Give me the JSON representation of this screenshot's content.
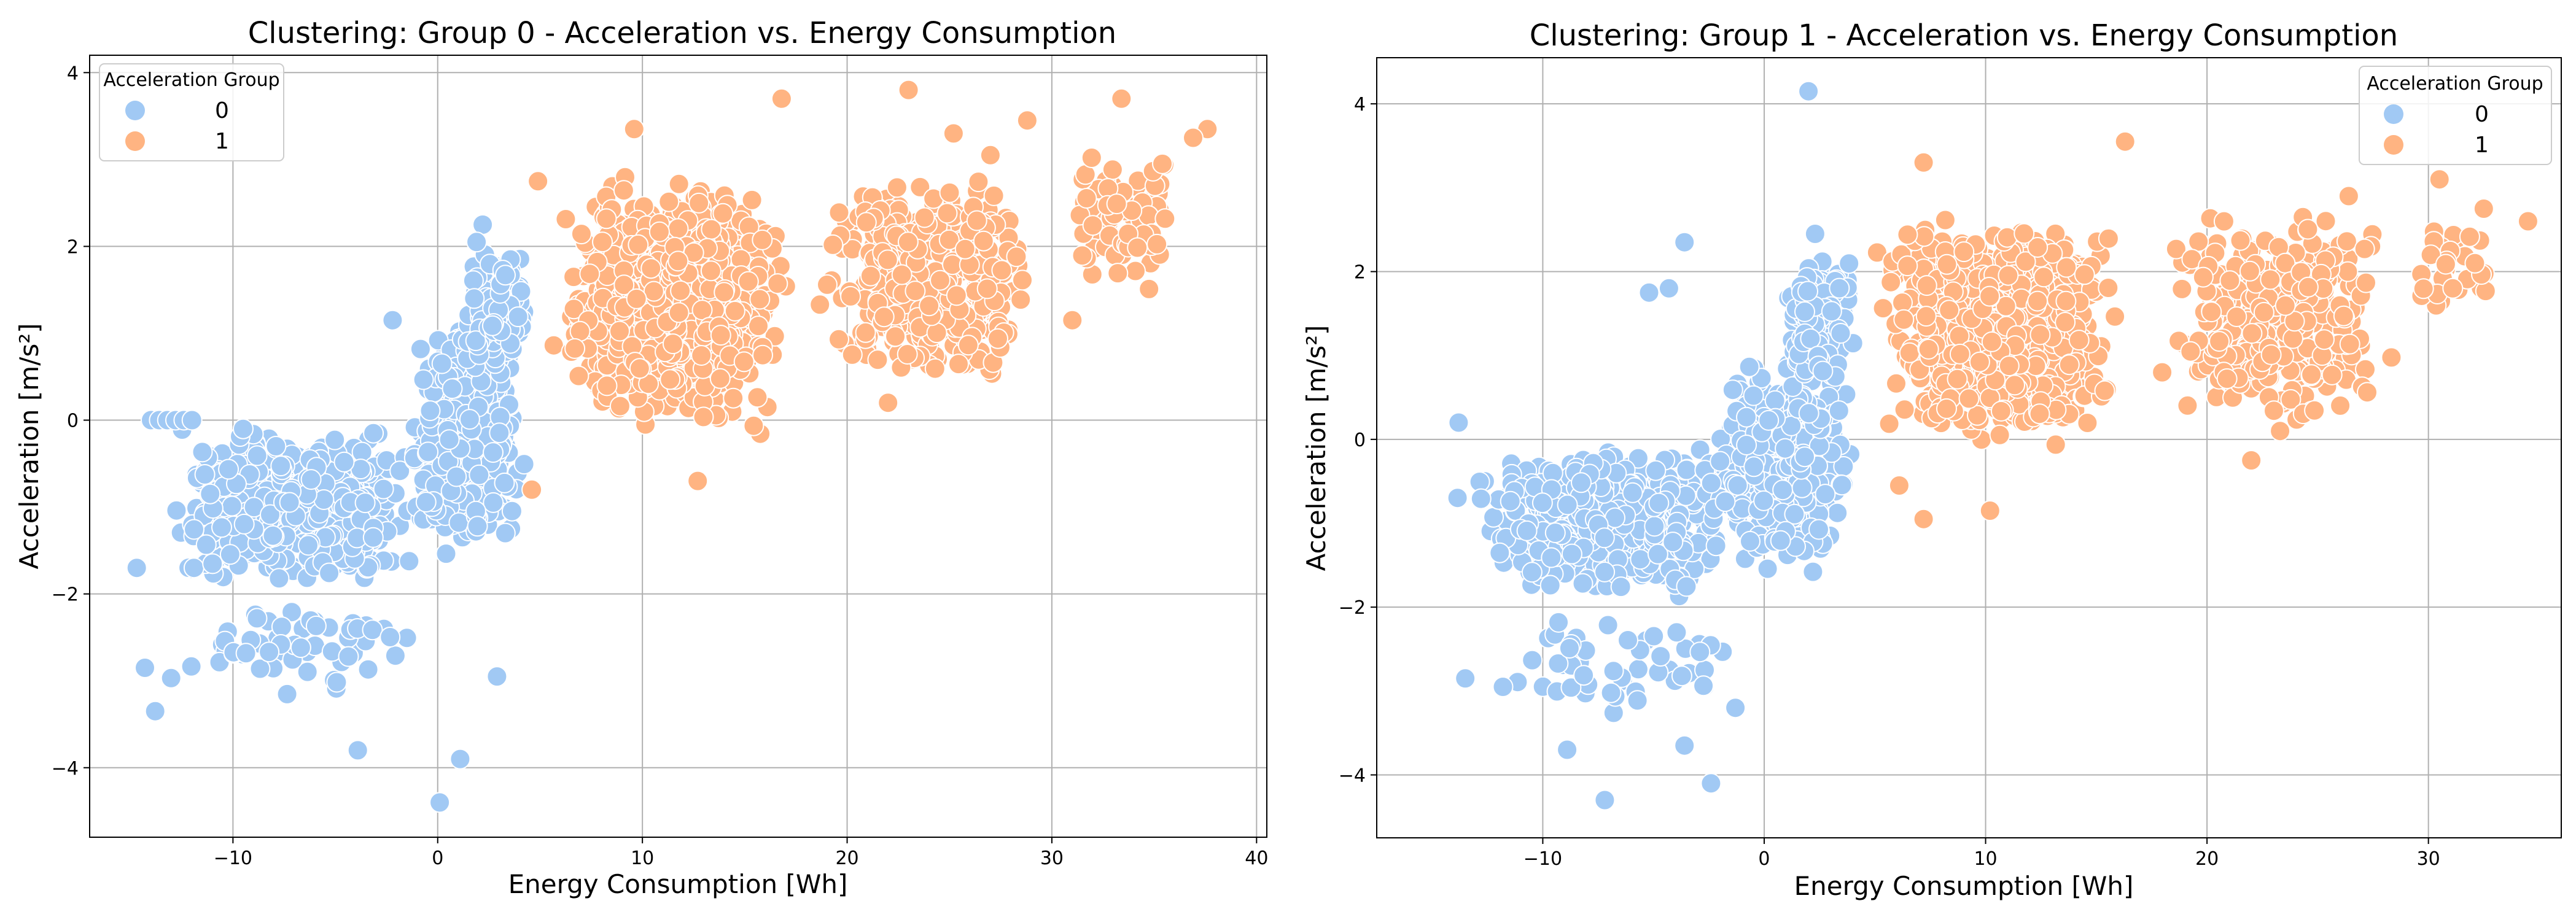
{
  "chart_data": [
    {
      "type": "scatter",
      "title": "Clustering: Group 0 - Acceleration vs. Energy Consumption",
      "xlabel": "Energy Consumption [Wh]",
      "ylabel": "Acceleration [m/s²]",
      "xlim": [
        -17,
        40.5
      ],
      "ylim": [
        -4.8,
        4.2
      ],
      "xticks": [
        -10,
        0,
        10,
        20,
        30,
        40
      ],
      "xtick_labels": [
        "−10",
        "0",
        "10",
        "20",
        "30",
        "40"
      ],
      "yticks": [
        -4,
        -2,
        0,
        2,
        4
      ],
      "ytick_labels": [
        "−4",
        "−2",
        "0",
        "2",
        "4"
      ],
      "grid": true,
      "legend": {
        "title": "Acceleration Group",
        "position": "top-left",
        "labels": [
          "0",
          "1"
        ]
      },
      "series": [
        {
          "name": "0",
          "color": "#a1c9f4",
          "clusters": [
            {
              "x_range": [
                -14.5,
                0
              ],
              "y_range": [
                -2.1,
                0.1
              ],
              "count": 520
            },
            {
              "x_range": [
                -2,
                4.8
              ],
              "y_range": [
                -1.9,
                1.5
              ],
              "count": 360
            },
            {
              "x_range": [
                1,
                4.8
              ],
              "y_range": [
                0.5,
                2.1
              ],
              "count": 140
            },
            {
              "x_range": [
                -14.5,
                1.5
              ],
              "y_range": [
                -3.3,
                -2.0
              ],
              "count": 55
            }
          ],
          "outliers": [
            [
              -14,
              0
            ],
            [
              -13.6,
              0
            ],
            [
              -13.2,
              0
            ],
            [
              -12.8,
              0
            ],
            [
              -12.4,
              0
            ],
            [
              -12,
              0
            ],
            [
              -13.8,
              -3.35
            ],
            [
              -14.3,
              -2.85
            ],
            [
              -2.2,
              1.15
            ],
            [
              2.2,
              2.25
            ],
            [
              1.9,
              2.05
            ],
            [
              -3.9,
              -3.8
            ],
            [
              0.1,
              -4.4
            ],
            [
              1.1,
              -3.9
            ],
            [
              2.9,
              -2.95
            ],
            [
              3.3,
              -1.3
            ],
            [
              -9.5,
              -0.1
            ],
            [
              -7.9,
              -0.3
            ],
            [
              -14.7,
              -1.7
            ]
          ]
        },
        {
          "name": "1",
          "color": "#ffb482",
          "clusters": [
            {
              "x_range": [
                4.8,
                18
              ],
              "y_range": [
                -0.3,
                3.0
              ],
              "count": 900
            },
            {
              "x_range": [
                18,
                30
              ],
              "y_range": [
                0.1,
                3.1
              ],
              "count": 380
            },
            {
              "x_range": [
                30,
                37
              ],
              "y_range": [
                1.3,
                3.3
              ],
              "count": 70
            }
          ],
          "outliers": [
            [
              23,
              3.8
            ],
            [
              33.4,
              3.7
            ],
            [
              16.8,
              3.7
            ],
            [
              37.6,
              3.35
            ],
            [
              12.7,
              -0.7
            ],
            [
              22,
              0.2
            ],
            [
              31,
              1.15
            ],
            [
              4.6,
              -0.8
            ],
            [
              4.9,
              2.75
            ],
            [
              9.6,
              3.35
            ],
            [
              25.2,
              3.3
            ],
            [
              28.8,
              3.45
            ],
            [
              35.4,
              2.95
            ],
            [
              36.9,
              3.25
            ],
            [
              27,
              3.05
            ]
          ]
        }
      ]
    },
    {
      "type": "scatter",
      "title": "Clustering: Group 1 - Acceleration vs. Energy Consumption",
      "xlabel": "Energy Consumption [Wh]",
      "ylabel": "Acceleration [m/s²]",
      "xlim": [
        -17.5,
        36
      ],
      "ylim": [
        -4.75,
        4.55
      ],
      "xticks": [
        -10,
        0,
        10,
        20,
        30
      ],
      "xtick_labels": [
        "−10",
        "0",
        "10",
        "20",
        "30"
      ],
      "yticks": [
        -4,
        -2,
        0,
        2,
        4
      ],
      "ytick_labels": [
        "−4",
        "−2",
        "0",
        "2",
        "4"
      ],
      "grid": true,
      "legend": {
        "title": "Acceleration Group",
        "position": "top-right",
        "labels": [
          "0",
          "1"
        ]
      },
      "series": [
        {
          "name": "0",
          "color": "#a1c9f4",
          "clusters": [
            {
              "x_range": [
                -14.5,
                0
              ],
              "y_range": [
                -2.0,
                0.1
              ],
              "count": 520
            },
            {
              "x_range": [
                -3,
                4.5
              ],
              "y_range": [
                -1.9,
                1.3
              ],
              "count": 340
            },
            {
              "x_range": [
                0.5,
                4.5
              ],
              "y_range": [
                0.5,
                2.3
              ],
              "count": 140
            },
            {
              "x_range": [
                -13,
                0.8
              ],
              "y_range": [
                -3.4,
                -2.0
              ],
              "count": 50
            }
          ],
          "outliers": [
            [
              2,
              4.15
            ],
            [
              -3.6,
              2.35
            ],
            [
              -4.3,
              1.8
            ],
            [
              -5.2,
              1.75
            ],
            [
              -13.8,
              0.2
            ],
            [
              -8.9,
              -3.7
            ],
            [
              -7.2,
              -4.3
            ],
            [
              -2.4,
              -4.1
            ],
            [
              -11.8,
              -2.95
            ],
            [
              -13.5,
              -2.85
            ],
            [
              -3.6,
              -3.65
            ],
            [
              -1.3,
              -3.2
            ],
            [
              2.3,
              2.45
            ]
          ]
        },
        {
          "name": "1",
          "color": "#ffb482",
          "clusters": [
            {
              "x_range": [
                4.5,
                17
              ],
              "y_range": [
                -0.3,
                2.9
              ],
              "count": 780
            },
            {
              "x_range": [
                17,
                29
              ],
              "y_range": [
                -0.1,
                2.9
              ],
              "count": 340
            },
            {
              "x_range": [
                29,
                34
              ],
              "y_range": [
                1.4,
                2.8
              ],
              "count": 30
            }
          ],
          "outliers": [
            [
              16.3,
              3.55
            ],
            [
              7.2,
              3.3
            ],
            [
              30.5,
              3.1
            ],
            [
              32.5,
              2.75
            ],
            [
              34.5,
              2.6
            ],
            [
              22,
              -0.25
            ],
            [
              23.3,
              0.1
            ],
            [
              6.1,
              -0.55
            ],
            [
              7.2,
              -0.95
            ],
            [
              10.2,
              -0.85
            ],
            [
              31.1,
              1.8
            ],
            [
              32.1,
              2.1
            ],
            [
              26.4,
              2.9
            ]
          ]
        }
      ]
    }
  ]
}
